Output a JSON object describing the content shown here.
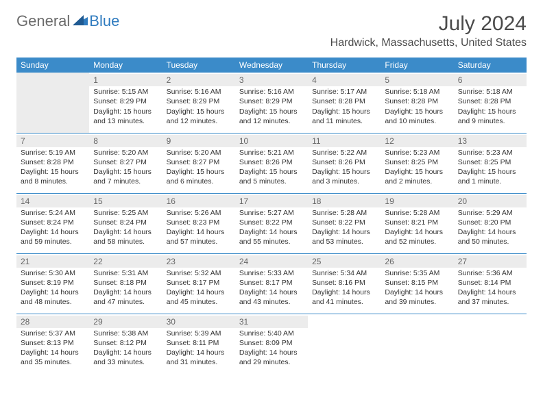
{
  "logo": {
    "general": "General",
    "blue": "Blue"
  },
  "title": "July 2024",
  "location": "Hardwick, Massachusetts, United States",
  "colors": {
    "header_bg": "#3b8bc9",
    "header_text": "#ffffff",
    "daynum_bg": "#ececec",
    "border": "#3b8bc9",
    "body_text": "#333333",
    "title_text": "#4a4a4a",
    "logo_gray": "#6b6b6b",
    "logo_blue": "#2f7bbf"
  },
  "weekdays": [
    "Sunday",
    "Monday",
    "Tuesday",
    "Wednesday",
    "Thursday",
    "Friday",
    "Saturday"
  ],
  "weeks": [
    [
      null,
      {
        "d": "1",
        "sr": "5:15 AM",
        "ss": "8:29 PM",
        "dl": "15 hours and 13 minutes."
      },
      {
        "d": "2",
        "sr": "5:16 AM",
        "ss": "8:29 PM",
        "dl": "15 hours and 12 minutes."
      },
      {
        "d": "3",
        "sr": "5:16 AM",
        "ss": "8:29 PM",
        "dl": "15 hours and 12 minutes."
      },
      {
        "d": "4",
        "sr": "5:17 AM",
        "ss": "8:28 PM",
        "dl": "15 hours and 11 minutes."
      },
      {
        "d": "5",
        "sr": "5:18 AM",
        "ss": "8:28 PM",
        "dl": "15 hours and 10 minutes."
      },
      {
        "d": "6",
        "sr": "5:18 AM",
        "ss": "8:28 PM",
        "dl": "15 hours and 9 minutes."
      }
    ],
    [
      {
        "d": "7",
        "sr": "5:19 AM",
        "ss": "8:28 PM",
        "dl": "15 hours and 8 minutes."
      },
      {
        "d": "8",
        "sr": "5:20 AM",
        "ss": "8:27 PM",
        "dl": "15 hours and 7 minutes."
      },
      {
        "d": "9",
        "sr": "5:20 AM",
        "ss": "8:27 PM",
        "dl": "15 hours and 6 minutes."
      },
      {
        "d": "10",
        "sr": "5:21 AM",
        "ss": "8:26 PM",
        "dl": "15 hours and 5 minutes."
      },
      {
        "d": "11",
        "sr": "5:22 AM",
        "ss": "8:26 PM",
        "dl": "15 hours and 3 minutes."
      },
      {
        "d": "12",
        "sr": "5:23 AM",
        "ss": "8:25 PM",
        "dl": "15 hours and 2 minutes."
      },
      {
        "d": "13",
        "sr": "5:23 AM",
        "ss": "8:25 PM",
        "dl": "15 hours and 1 minute."
      }
    ],
    [
      {
        "d": "14",
        "sr": "5:24 AM",
        "ss": "8:24 PM",
        "dl": "14 hours and 59 minutes."
      },
      {
        "d": "15",
        "sr": "5:25 AM",
        "ss": "8:24 PM",
        "dl": "14 hours and 58 minutes."
      },
      {
        "d": "16",
        "sr": "5:26 AM",
        "ss": "8:23 PM",
        "dl": "14 hours and 57 minutes."
      },
      {
        "d": "17",
        "sr": "5:27 AM",
        "ss": "8:22 PM",
        "dl": "14 hours and 55 minutes."
      },
      {
        "d": "18",
        "sr": "5:28 AM",
        "ss": "8:22 PM",
        "dl": "14 hours and 53 minutes."
      },
      {
        "d": "19",
        "sr": "5:28 AM",
        "ss": "8:21 PM",
        "dl": "14 hours and 52 minutes."
      },
      {
        "d": "20",
        "sr": "5:29 AM",
        "ss": "8:20 PM",
        "dl": "14 hours and 50 minutes."
      }
    ],
    [
      {
        "d": "21",
        "sr": "5:30 AM",
        "ss": "8:19 PM",
        "dl": "14 hours and 48 minutes."
      },
      {
        "d": "22",
        "sr": "5:31 AM",
        "ss": "8:18 PM",
        "dl": "14 hours and 47 minutes."
      },
      {
        "d": "23",
        "sr": "5:32 AM",
        "ss": "8:17 PM",
        "dl": "14 hours and 45 minutes."
      },
      {
        "d": "24",
        "sr": "5:33 AM",
        "ss": "8:17 PM",
        "dl": "14 hours and 43 minutes."
      },
      {
        "d": "25",
        "sr": "5:34 AM",
        "ss": "8:16 PM",
        "dl": "14 hours and 41 minutes."
      },
      {
        "d": "26",
        "sr": "5:35 AM",
        "ss": "8:15 PM",
        "dl": "14 hours and 39 minutes."
      },
      {
        "d": "27",
        "sr": "5:36 AM",
        "ss": "8:14 PM",
        "dl": "14 hours and 37 minutes."
      }
    ],
    [
      {
        "d": "28",
        "sr": "5:37 AM",
        "ss": "8:13 PM",
        "dl": "14 hours and 35 minutes."
      },
      {
        "d": "29",
        "sr": "5:38 AM",
        "ss": "8:12 PM",
        "dl": "14 hours and 33 minutes."
      },
      {
        "d": "30",
        "sr": "5:39 AM",
        "ss": "8:11 PM",
        "dl": "14 hours and 31 minutes."
      },
      {
        "d": "31",
        "sr": "5:40 AM",
        "ss": "8:09 PM",
        "dl": "14 hours and 29 minutes."
      },
      null,
      null,
      null
    ]
  ],
  "labels": {
    "sunrise": "Sunrise:",
    "sunset": "Sunset:",
    "daylight": "Daylight:"
  }
}
